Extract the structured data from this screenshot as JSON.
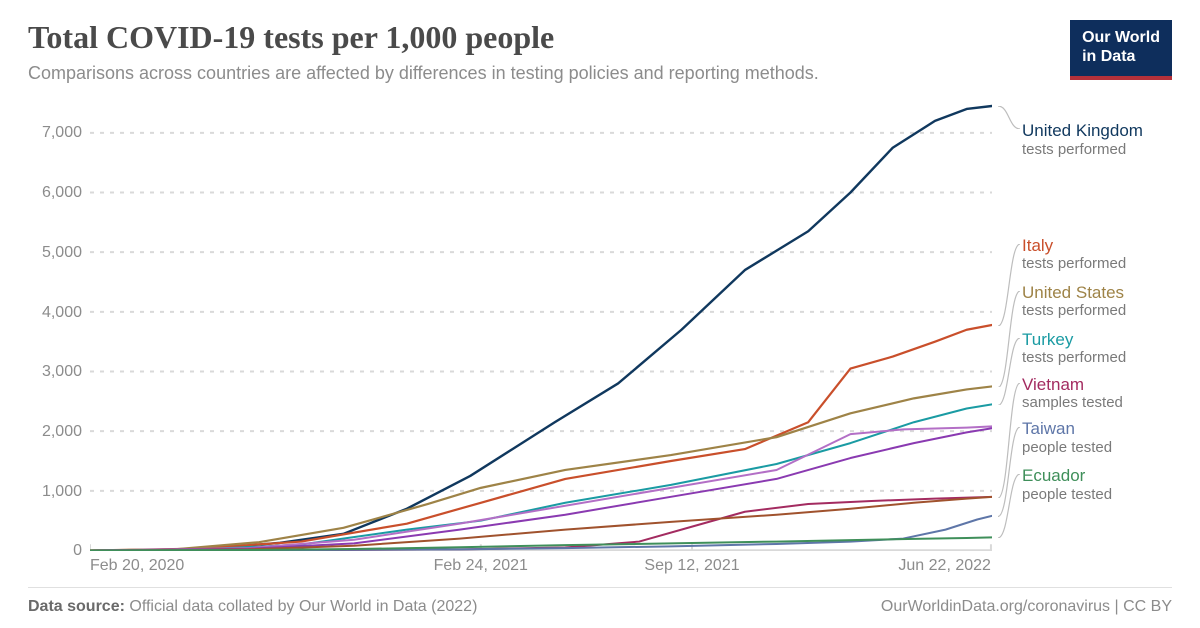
{
  "header": {
    "title": "Total COVID-19 tests per 1,000 people",
    "subtitle": "Comparisons across countries are affected by differences in testing policies and reporting methods.",
    "logo_line1": "Our World",
    "logo_line2": "in Data"
  },
  "chart": {
    "type": "line",
    "x_domain": [
      0,
      854
    ],
    "y_domain": [
      0,
      7500
    ],
    "grid_color": "#d9d9d9",
    "axis_color": "#8c8c8c",
    "background_color": "#ffffff",
    "y_ticks": [
      {
        "v": 0,
        "label": "0"
      },
      {
        "v": 1000,
        "label": "1,000"
      },
      {
        "v": 2000,
        "label": "2,000"
      },
      {
        "v": 3000,
        "label": "3,000"
      },
      {
        "v": 4000,
        "label": "4,000"
      },
      {
        "v": 5000,
        "label": "5,000"
      },
      {
        "v": 6000,
        "label": "6,000"
      },
      {
        "v": 7000,
        "label": "7,000"
      }
    ],
    "x_ticks": [
      {
        "v": 0,
        "label": "Feb 20, 2020"
      },
      {
        "v": 370,
        "label": "Feb 24, 2021"
      },
      {
        "v": 570,
        "label": "Sep 12, 2021"
      },
      {
        "v": 853,
        "label": "Jun 22, 2022"
      }
    ],
    "series": [
      {
        "id": "uk",
        "name": "United Kingdom",
        "sub": "tests performed",
        "color": "#10385e",
        "width": 2.4,
        "label_y_frac": 0.04,
        "points": [
          [
            0,
            0
          ],
          [
            60,
            5
          ],
          [
            120,
            40
          ],
          [
            180,
            130
          ],
          [
            240,
            280
          ],
          [
            300,
            700
          ],
          [
            360,
            1250
          ],
          [
            400,
            1700
          ],
          [
            440,
            2150
          ],
          [
            500,
            2800
          ],
          [
            560,
            3700
          ],
          [
            620,
            4700
          ],
          [
            680,
            5350
          ],
          [
            720,
            6000
          ],
          [
            760,
            6750
          ],
          [
            800,
            7200
          ],
          [
            830,
            7400
          ],
          [
            854,
            7450
          ]
        ]
      },
      {
        "id": "italy",
        "name": "Italy",
        "sub": "tests performed",
        "color": "#c94f2b",
        "width": 2.2,
        "label_y_frac": 0.295,
        "points": [
          [
            0,
            0
          ],
          [
            100,
            30
          ],
          [
            200,
            150
          ],
          [
            300,
            450
          ],
          [
            370,
            800
          ],
          [
            450,
            1200
          ],
          [
            550,
            1500
          ],
          [
            620,
            1700
          ],
          [
            680,
            2150
          ],
          [
            720,
            3050
          ],
          [
            760,
            3250
          ],
          [
            800,
            3500
          ],
          [
            830,
            3700
          ],
          [
            854,
            3780
          ]
        ]
      },
      {
        "id": "us",
        "name": "United States",
        "sub": "tests performed",
        "color": "#9e8347",
        "width": 2.2,
        "label_y_frac": 0.4,
        "points": [
          [
            0,
            0
          ],
          [
            80,
            20
          ],
          [
            160,
            140
          ],
          [
            240,
            380
          ],
          [
            320,
            780
          ],
          [
            370,
            1050
          ],
          [
            450,
            1350
          ],
          [
            550,
            1600
          ],
          [
            650,
            1900
          ],
          [
            720,
            2300
          ],
          [
            780,
            2550
          ],
          [
            830,
            2700
          ],
          [
            854,
            2750
          ]
        ]
      },
      {
        "id": "turkey",
        "name": "Turkey",
        "sub": "tests performed",
        "color": "#1a9ba3",
        "width": 2.0,
        "label_y_frac": 0.505,
        "points": [
          [
            0,
            0
          ],
          [
            100,
            15
          ],
          [
            200,
            100
          ],
          [
            300,
            350
          ],
          [
            370,
            500
          ],
          [
            450,
            800
          ],
          [
            550,
            1100
          ],
          [
            650,
            1450
          ],
          [
            720,
            1800
          ],
          [
            780,
            2150
          ],
          [
            830,
            2380
          ],
          [
            854,
            2450
          ]
        ]
      },
      {
        "id": "portugal_like",
        "name": "",
        "sub": "",
        "color": "#b36fc6",
        "width": 2.0,
        "hide_label": true,
        "points": [
          [
            0,
            0
          ],
          [
            150,
            40
          ],
          [
            250,
            180
          ],
          [
            350,
            450
          ],
          [
            450,
            750
          ],
          [
            550,
            1050
          ],
          [
            650,
            1350
          ],
          [
            720,
            1950
          ],
          [
            770,
            2030
          ],
          [
            830,
            2060
          ],
          [
            854,
            2080
          ]
        ]
      },
      {
        "id": "vietnam",
        "name": "Vietnam",
        "sub": "samples tested",
        "color": "#a32b60",
        "width": 2.0,
        "label_y_frac": 0.605,
        "points": [
          [
            0,
            0
          ],
          [
            200,
            5
          ],
          [
            350,
            20
          ],
          [
            450,
            50
          ],
          [
            520,
            150
          ],
          [
            570,
            400
          ],
          [
            620,
            650
          ],
          [
            680,
            780
          ],
          [
            740,
            830
          ],
          [
            800,
            870
          ],
          [
            854,
            900
          ]
        ]
      },
      {
        "id": "france_like",
        "name": "",
        "sub": "",
        "color": "#8a3ab1",
        "width": 2.0,
        "hide_label": true,
        "points": [
          [
            0,
            0
          ],
          [
            150,
            30
          ],
          [
            250,
            120
          ],
          [
            350,
            350
          ],
          [
            450,
            600
          ],
          [
            550,
            900
          ],
          [
            650,
            1200
          ],
          [
            720,
            1550
          ],
          [
            780,
            1800
          ],
          [
            830,
            1980
          ],
          [
            854,
            2050
          ]
        ]
      },
      {
        "id": "mexico_like",
        "name": "",
        "sub": "",
        "color": "#a0522d",
        "width": 2.0,
        "hide_label": true,
        "points": [
          [
            0,
            0
          ],
          [
            150,
            20
          ],
          [
            250,
            80
          ],
          [
            350,
            200
          ],
          [
            450,
            350
          ],
          [
            550,
            480
          ],
          [
            650,
            600
          ],
          [
            720,
            700
          ],
          [
            780,
            800
          ],
          [
            830,
            870
          ],
          [
            854,
            900
          ]
        ]
      },
      {
        "id": "taiwan",
        "name": "Taiwan",
        "sub": "people tested",
        "color": "#5e76a8",
        "width": 2.0,
        "label_y_frac": 0.705,
        "points": [
          [
            0,
            0
          ],
          [
            200,
            8
          ],
          [
            350,
            20
          ],
          [
            450,
            40
          ],
          [
            550,
            70
          ],
          [
            650,
            110
          ],
          [
            720,
            150
          ],
          [
            770,
            200
          ],
          [
            810,
            350
          ],
          [
            840,
            520
          ],
          [
            854,
            580
          ]
        ]
      },
      {
        "id": "ecuador",
        "name": "Ecuador",
        "sub": "people tested",
        "color": "#3f8f5a",
        "width": 2.0,
        "label_y_frac": 0.81,
        "points": [
          [
            0,
            0
          ],
          [
            150,
            8
          ],
          [
            250,
            25
          ],
          [
            350,
            55
          ],
          [
            450,
            90
          ],
          [
            550,
            120
          ],
          [
            650,
            150
          ],
          [
            720,
            175
          ],
          [
            780,
            195
          ],
          [
            830,
            210
          ],
          [
            854,
            220
          ]
        ]
      }
    ]
  },
  "footer": {
    "source_label": "Data source:",
    "source_value": "Official data collated by Our World in Data (2022)",
    "right": "OurWorldinData.org/coronavirus | CC BY"
  }
}
